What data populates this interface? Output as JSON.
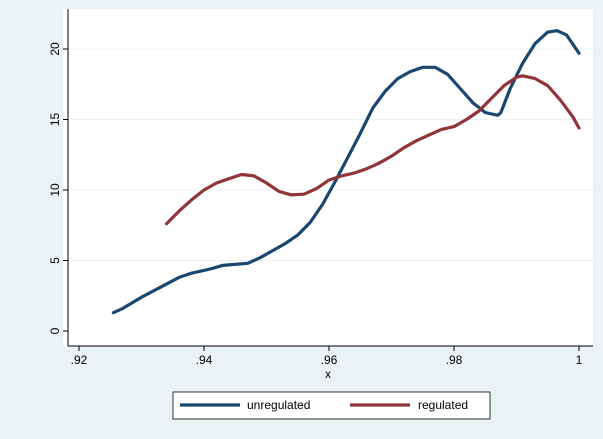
{
  "chart_data": {
    "type": "line",
    "title": "",
    "xlabel": "x",
    "ylabel": "",
    "xlim": [
      0.92,
      1.0
    ],
    "ylim": [
      0,
      22
    ],
    "x_ticks": [
      0.92,
      0.94,
      0.96,
      0.98,
      1.0
    ],
    "x_tick_labels": [
      ".92",
      ".94",
      ".96",
      ".98",
      "1"
    ],
    "y_ticks": [
      0,
      5,
      10,
      15,
      20
    ],
    "y_tick_labels": [
      "0",
      "5",
      "10",
      "15",
      "20"
    ],
    "grid": "horizontal",
    "legend_position": "bottom",
    "series": [
      {
        "name": "unregulated",
        "color": "#1a476f",
        "points": [
          [
            0.9255,
            1.3
          ],
          [
            0.927,
            1.6
          ],
          [
            0.93,
            2.4
          ],
          [
            0.933,
            3.1
          ],
          [
            0.936,
            3.8
          ],
          [
            0.938,
            4.1
          ],
          [
            0.941,
            4.4
          ],
          [
            0.943,
            4.65
          ],
          [
            0.947,
            4.8
          ],
          [
            0.949,
            5.2
          ],
          [
            0.951,
            5.7
          ],
          [
            0.953,
            6.2
          ],
          [
            0.955,
            6.8
          ],
          [
            0.957,
            7.7
          ],
          [
            0.959,
            9.0
          ],
          [
            0.961,
            10.6
          ],
          [
            0.963,
            12.3
          ],
          [
            0.965,
            14.0
          ],
          [
            0.967,
            15.8
          ],
          [
            0.969,
            17.0
          ],
          [
            0.971,
            17.9
          ],
          [
            0.973,
            18.4
          ],
          [
            0.975,
            18.7
          ],
          [
            0.977,
            18.7
          ],
          [
            0.979,
            18.2
          ],
          [
            0.981,
            17.2
          ],
          [
            0.983,
            16.2
          ],
          [
            0.985,
            15.5
          ],
          [
            0.987,
            15.3
          ],
          [
            0.9875,
            15.5
          ],
          [
            0.989,
            17.2
          ],
          [
            0.991,
            19.0
          ],
          [
            0.993,
            20.4
          ],
          [
            0.995,
            21.2
          ],
          [
            0.9965,
            21.3
          ],
          [
            0.998,
            21.0
          ],
          [
            1.0,
            19.7
          ]
        ]
      },
      {
        "name": "regulated",
        "color": "#90353b",
        "points": [
          [
            0.934,
            7.6
          ],
          [
            0.936,
            8.5
          ],
          [
            0.938,
            9.3
          ],
          [
            0.94,
            10.0
          ],
          [
            0.942,
            10.5
          ],
          [
            0.944,
            10.8
          ],
          [
            0.946,
            11.1
          ],
          [
            0.948,
            11.0
          ],
          [
            0.95,
            10.5
          ],
          [
            0.952,
            9.9
          ],
          [
            0.954,
            9.65
          ],
          [
            0.956,
            9.7
          ],
          [
            0.958,
            10.1
          ],
          [
            0.96,
            10.7
          ],
          [
            0.962,
            11.0
          ],
          [
            0.964,
            11.2
          ],
          [
            0.966,
            11.5
          ],
          [
            0.968,
            11.9
          ],
          [
            0.97,
            12.4
          ],
          [
            0.972,
            13.0
          ],
          [
            0.974,
            13.5
          ],
          [
            0.976,
            13.9
          ],
          [
            0.978,
            14.3
          ],
          [
            0.98,
            14.5
          ],
          [
            0.982,
            15.0
          ],
          [
            0.984,
            15.6
          ],
          [
            0.986,
            16.5
          ],
          [
            0.988,
            17.4
          ],
          [
            0.99,
            18.0
          ],
          [
            0.991,
            18.1
          ],
          [
            0.993,
            17.9
          ],
          [
            0.995,
            17.4
          ],
          [
            0.997,
            16.4
          ],
          [
            0.999,
            15.2
          ],
          [
            1.0,
            14.4
          ]
        ]
      }
    ]
  }
}
